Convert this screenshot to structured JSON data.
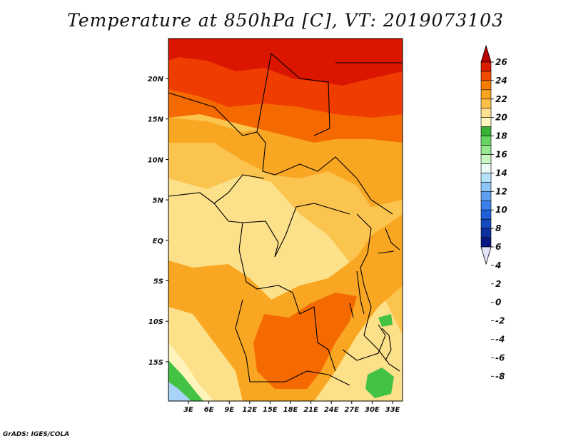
{
  "title": "Temperature at 850hPa [C], VT: 2019073103",
  "credit": "GrADS: IGES/COLA",
  "lat_ticks": [
    "20N",
    "15N",
    "10N",
    "5N",
    "EQ",
    "5S",
    "10S",
    "15S"
  ],
  "lon_ticks": [
    "3E",
    "6E",
    "9E",
    "12E",
    "15E",
    "18E",
    "21E",
    "24E",
    "27E",
    "30E",
    "33E"
  ],
  "colorbar": {
    "labels": [
      "26",
      "24",
      "22",
      "20",
      "18",
      "16",
      "14",
      "12",
      "10",
      "8",
      "6",
      "4",
      "2",
      "0",
      "-2",
      "-4",
      "-6",
      "-8"
    ],
    "colors": [
      "#b40000",
      "#dc1e00",
      "#f04b00",
      "#f67d00",
      "#f9a41c",
      "#fbc04a",
      "#fde18e",
      "#fef6be",
      "#37b135",
      "#67d563",
      "#96e98f",
      "#c8f7c3",
      "#e9fbf3",
      "#b5e3fb",
      "#8ec4f5",
      "#5e9ff0",
      "#3a81eb",
      "#1f5fd8",
      "#1449bf",
      "#0d2e9e",
      "#071882",
      "#e6e6fa"
    ]
  },
  "field_colors": {
    "hottest": "#db1600",
    "very_hot": "#ef3c00",
    "hot": "#f56a00",
    "warm": "#f9a722",
    "mild": "#fbc44e",
    "cool": "#fde08a",
    "cooler": "#fef3bb",
    "green": "#44c244",
    "sky": "#a8d4f7"
  }
}
